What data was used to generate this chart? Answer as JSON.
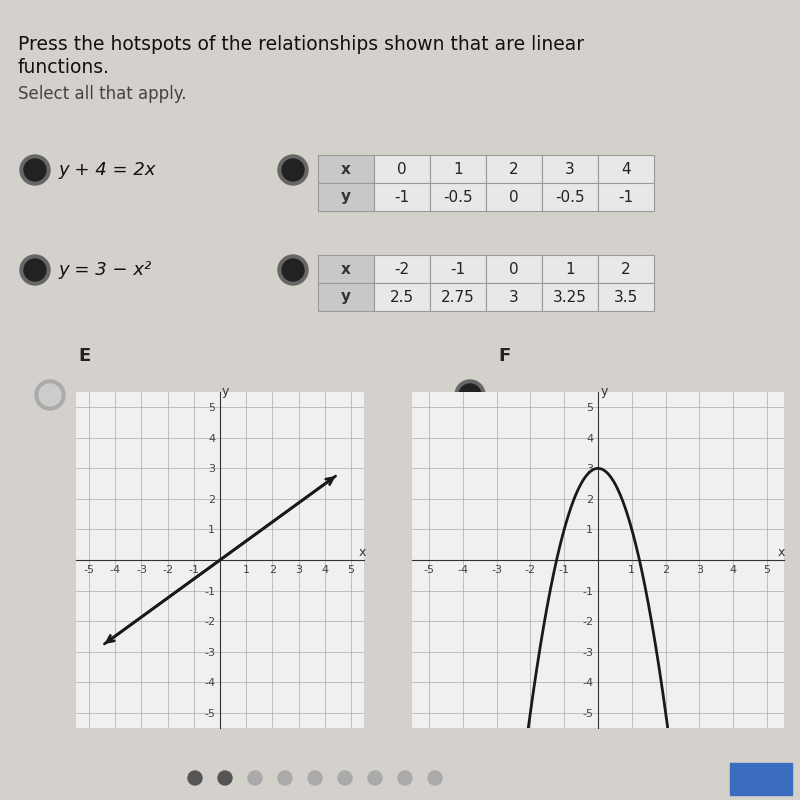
{
  "title_line1": "Press the hotspots of the relationships shown that are linear",
  "title_line2": "functions.",
  "subtitle": "Select all that apply.",
  "bg_color": "#d4d0cb",
  "row_A_label": "y + 4 = 2x",
  "row_A_selected": true,
  "row_A_table_selected": true,
  "row_A_x": [
    0,
    1,
    2,
    3,
    4
  ],
  "row_A_y": [
    -1,
    -0.5,
    0,
    -0.5,
    -1
  ],
  "row_B_label": "y = 3 − x²",
  "row_B_selected": true,
  "row_B_table_selected": true,
  "row_B_x": [
    -2,
    -1,
    0,
    1,
    2
  ],
  "row_B_y": [
    2.5,
    2.75,
    3,
    3.25,
    3.5
  ],
  "graph_E_label": "E",
  "graph_E_selected": false,
  "graph_F_label": "F",
  "graph_F_selected": true,
  "grid_color": "#aaaaaa",
  "line_color": "#1a1a1a"
}
